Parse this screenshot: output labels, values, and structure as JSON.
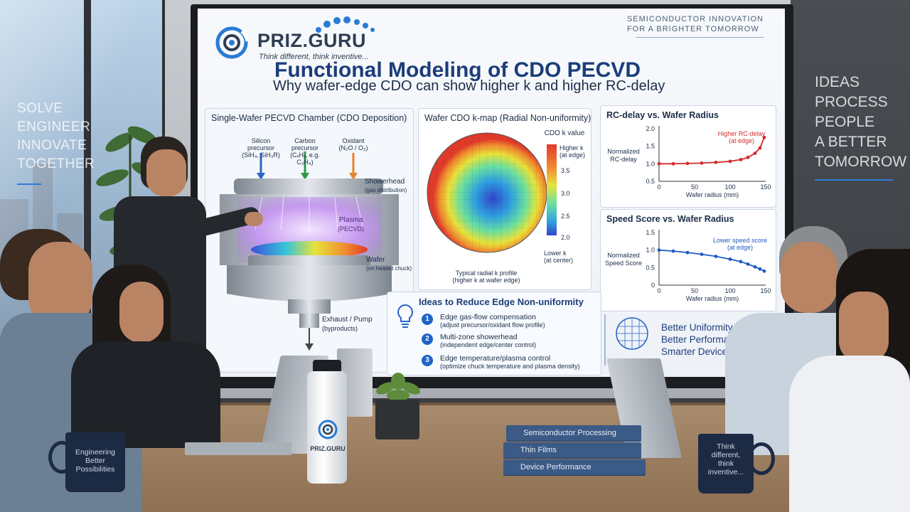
{
  "room": {
    "glass_text": "SOLVE\nENGINEER\nINNOVATE\nTOGETHER",
    "wall_slogan": "IDEAS\nPROCESS\nPEOPLE\nA BETTER\nTOMORROW"
  },
  "slide": {
    "logo_name": "PRIZ.GURU",
    "logo_tagline": "Think different, think inventive...",
    "top_tagline": "SEMICONDUCTOR INNOVATION\nFOR A BRIGHTER TOMORROW",
    "title": "Functional Modeling of CDO PECVD",
    "subtitle": "Why wafer-edge CDO can show higher k and higher RC-delay",
    "chamber": {
      "title": "Single-Wafer PECVD Chamber (CDO Deposition)",
      "silicon_label": "Silicon\nprecursor\n(SiH₄, SiH₃R)",
      "carbon_label": "Carbon\nprecursor\n(CₓHᵧ, e.g. C₂H₄)",
      "oxidant_label": "Oxidant\n(N₂O / O₂)",
      "showerhead_label": "Showerhead",
      "showerhead_sub": "(gas distribution)",
      "plasma_label": "Plasma",
      "plasma_sub": "(PECVD)",
      "wafer_label": "Wafer",
      "wafer_sub": "(on heated chuck)",
      "exhaust_label": "Exhaust / Pump",
      "exhaust_sub": "(byproducts)"
    },
    "kmap": {
      "title": "Wafer CDO k-map (Radial Non-uniformity)",
      "colorbar_title": "CDO k value",
      "high_label": "Higher k\n(at edge)",
      "low_label": "Lower k\n(at center)",
      "ticks": [
        "3.5",
        "3.0",
        "2.5",
        "2.0"
      ],
      "caption": "Typical radial k profile\n(higher k at wafer edge)"
    },
    "rc_chart": {
      "chart_data": {
        "type": "line",
        "title": "RC-delay vs. Wafer Radius",
        "xlabel": "Wafer radius (mm)",
        "ylabel": "Normalized RC-delay",
        "x": [
          0,
          20,
          40,
          60,
          80,
          100,
          115,
          125,
          135,
          142,
          148
        ],
        "y": [
          1.0,
          1.0,
          1.01,
          1.02,
          1.04,
          1.07,
          1.12,
          1.18,
          1.3,
          1.45,
          1.75
        ],
        "xlim": [
          0,
          150
        ],
        "ylim": [
          0.5,
          2.0
        ],
        "xticks": [
          "0",
          "50",
          "100",
          "150"
        ],
        "yticks": [
          "2.0",
          "1.5",
          "1.0",
          "0.5"
        ],
        "annotation": "Higher RC-delay\n(at edge)",
        "grid": false
      }
    },
    "speed_chart": {
      "chart_data": {
        "type": "line",
        "title": "Speed Score vs. Wafer Radius",
        "xlabel": "Wafer radius (mm)",
        "ylabel": "Normalized Speed Score",
        "x": [
          0,
          20,
          40,
          60,
          80,
          100,
          115,
          125,
          135,
          142,
          148
        ],
        "y": [
          1.0,
          0.97,
          0.93,
          0.88,
          0.82,
          0.74,
          0.67,
          0.6,
          0.52,
          0.46,
          0.4
        ],
        "xlim": [
          0,
          150
        ],
        "ylim": [
          0,
          1.5
        ],
        "xticks": [
          "0",
          "50",
          "100",
          "150"
        ],
        "yticks": [
          "1.5",
          "1.0",
          "0.5",
          "0"
        ],
        "annotation": "Lower speed score\n(at edge)",
        "grid": false
      }
    },
    "ideas": {
      "title": "Ideas to Reduce Edge Non-uniformity",
      "items": [
        {
          "num": "1",
          "main": "Edge gas-flow compensation",
          "sub": "(adjust precursor/oxidant flow profile)"
        },
        {
          "num": "2",
          "main": "Multi-zone showerhead",
          "sub": "(independent edge/center control)"
        },
        {
          "num": "3",
          "main": "Edge temperature/plasma control",
          "sub": "(optimize chuck temperature and plasma density)"
        }
      ]
    },
    "benefits": [
      "Better Uniformity",
      "Better Performance",
      "Smarter Devices"
    ]
  },
  "table": {
    "mug_left": "Engineering\nBetter\nPossibilities",
    "mug_right": "Think\ndifferent,\nthink\ninventive...",
    "bottle_logo": "PRIZ.GURU",
    "books": [
      "Semiconductor Processing",
      "Thin Films",
      "Device Performance"
    ]
  }
}
